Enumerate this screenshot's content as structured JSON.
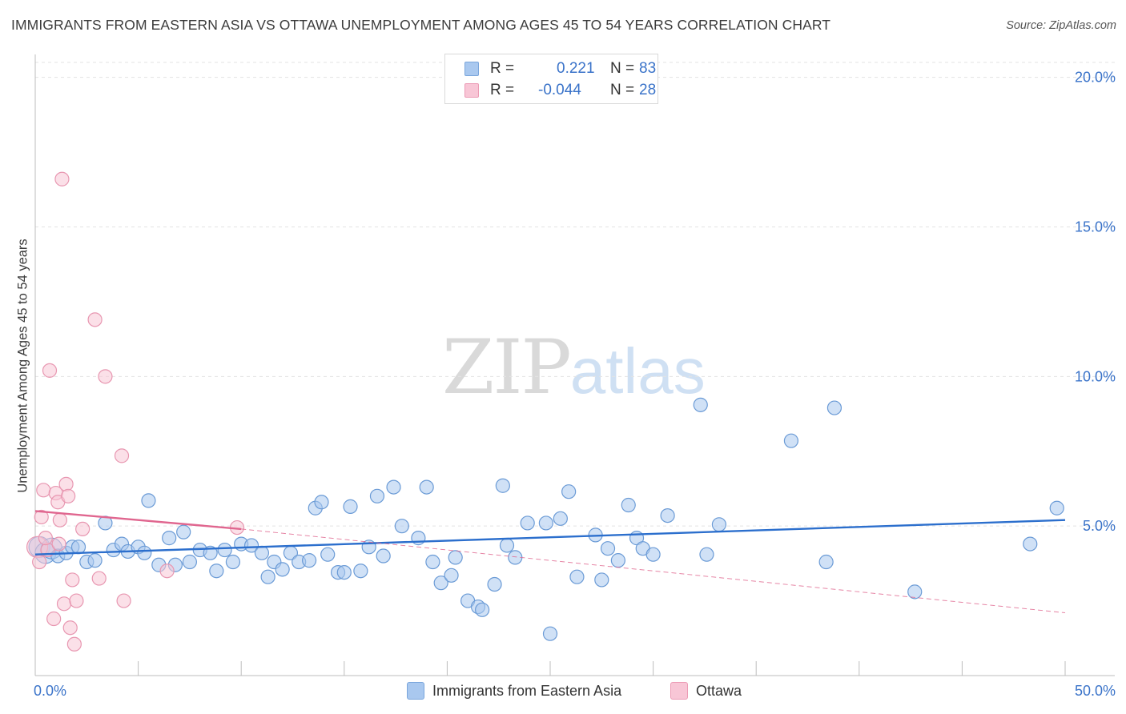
{
  "title": "IMMIGRANTS FROM EASTERN ASIA VS OTTAWA UNEMPLOYMENT AMONG AGES 45 TO 54 YEARS CORRELATION CHART",
  "source": "Source: ZipAtlas.com",
  "watermark": {
    "zip": "ZIP",
    "atlas": "atlas"
  },
  "legend_top": [
    {
      "r_label": "R =",
      "r_value": "0.221",
      "n_label": "N =",
      "n_value": "83",
      "color": "#a9c8ef",
      "border": "#7aa6dc"
    },
    {
      "r_label": "R =",
      "r_value": "-0.044",
      "n_label": "N =",
      "n_value": "28",
      "color": "#f8c6d6",
      "border": "#ec9bb5"
    }
  ],
  "legend_bottom": [
    {
      "label": "Immigrants from Eastern Asia",
      "color": "#a9c8ef",
      "border": "#7aa6dc"
    },
    {
      "label": "Ottawa",
      "color": "#f8c6d6",
      "border": "#ec9bb5"
    }
  ],
  "chart_data": {
    "type": "scatter",
    "title": "IMMIGRANTS FROM EASTERN ASIA VS OTTAWA UNEMPLOYMENT AMONG AGES 45 TO 54 YEARS CORRELATION CHART",
    "xlabel": "",
    "ylabel": "Unemployment Among Ages 45 to 54 years",
    "xlim": [
      0,
      50
    ],
    "ylim": [
      0,
      20.5
    ],
    "x_tick_labels": [
      "0.0%",
      "50.0%"
    ],
    "y_ticks": [
      5,
      10,
      15,
      20
    ],
    "y_tick_labels": [
      "5.0%",
      "10.0%",
      "15.0%",
      "20.0%"
    ],
    "grid": true,
    "series": [
      {
        "name": "Immigrants from Eastern Asia",
        "color": "#a9c8ef",
        "stroke": "#6b9bd6",
        "line_color": "#2c6fcd",
        "trend": {
          "x": [
            0,
            50
          ],
          "y": [
            4.05,
            5.2
          ]
        },
        "points": [
          {
            "x": 0.2,
            "y": 4.3,
            "big": true
          },
          {
            "x": 0.5,
            "y": 4.1,
            "big": true
          },
          {
            "x": 0.8,
            "y": 4.25,
            "big": true
          },
          {
            "x": 1.1,
            "y": 4.0
          },
          {
            "x": 1.5,
            "y": 4.1
          },
          {
            "x": 1.8,
            "y": 4.3
          },
          {
            "x": 2.1,
            "y": 4.3
          },
          {
            "x": 2.5,
            "y": 3.8
          },
          {
            "x": 2.9,
            "y": 3.85
          },
          {
            "x": 3.4,
            "y": 5.1
          },
          {
            "x": 3.8,
            "y": 4.2
          },
          {
            "x": 4.2,
            "y": 4.4
          },
          {
            "x": 4.5,
            "y": 4.15
          },
          {
            "x": 5.0,
            "y": 4.3
          },
          {
            "x": 5.3,
            "y": 4.1
          },
          {
            "x": 5.5,
            "y": 5.85
          },
          {
            "x": 6.0,
            "y": 3.7
          },
          {
            "x": 6.5,
            "y": 4.6
          },
          {
            "x": 6.8,
            "y": 3.7
          },
          {
            "x": 7.2,
            "y": 4.8
          },
          {
            "x": 7.5,
            "y": 3.8
          },
          {
            "x": 8.0,
            "y": 4.2
          },
          {
            "x": 8.5,
            "y": 4.1
          },
          {
            "x": 8.8,
            "y": 3.5
          },
          {
            "x": 9.2,
            "y": 4.2
          },
          {
            "x": 9.6,
            "y": 3.8
          },
          {
            "x": 10.0,
            "y": 4.4
          },
          {
            "x": 10.5,
            "y": 4.35
          },
          {
            "x": 11.0,
            "y": 4.1
          },
          {
            "x": 11.3,
            "y": 3.3
          },
          {
            "x": 11.6,
            "y": 3.8
          },
          {
            "x": 12.0,
            "y": 3.55
          },
          {
            "x": 12.4,
            "y": 4.1
          },
          {
            "x": 12.8,
            "y": 3.8
          },
          {
            "x": 13.3,
            "y": 3.85
          },
          {
            "x": 13.6,
            "y": 5.6
          },
          {
            "x": 13.9,
            "y": 5.8
          },
          {
            "x": 14.2,
            "y": 4.05
          },
          {
            "x": 14.7,
            "y": 3.45
          },
          {
            "x": 15.0,
            "y": 3.45
          },
          {
            "x": 15.3,
            "y": 5.65
          },
          {
            "x": 15.8,
            "y": 3.5
          },
          {
            "x": 16.2,
            "y": 4.3
          },
          {
            "x": 16.6,
            "y": 6.0
          },
          {
            "x": 16.9,
            "y": 4.0
          },
          {
            "x": 17.4,
            "y": 6.3
          },
          {
            "x": 17.8,
            "y": 5.0
          },
          {
            "x": 18.6,
            "y": 4.6
          },
          {
            "x": 19.0,
            "y": 6.3
          },
          {
            "x": 19.3,
            "y": 3.8
          },
          {
            "x": 19.7,
            "y": 3.1
          },
          {
            "x": 20.2,
            "y": 3.35
          },
          {
            "x": 20.4,
            "y": 3.95
          },
          {
            "x": 21.0,
            "y": 2.5
          },
          {
            "x": 21.5,
            "y": 2.3
          },
          {
            "x": 21.7,
            "y": 2.2
          },
          {
            "x": 22.3,
            "y": 3.05
          },
          {
            "x": 22.7,
            "y": 6.35
          },
          {
            "x": 22.9,
            "y": 4.35
          },
          {
            "x": 23.3,
            "y": 3.95
          },
          {
            "x": 23.9,
            "y": 5.1
          },
          {
            "x": 24.8,
            "y": 5.1
          },
          {
            "x": 25.0,
            "y": 1.4
          },
          {
            "x": 25.5,
            "y": 5.25
          },
          {
            "x": 25.9,
            "y": 6.15
          },
          {
            "x": 26.3,
            "y": 3.3
          },
          {
            "x": 27.2,
            "y": 4.7
          },
          {
            "x": 27.5,
            "y": 3.2
          },
          {
            "x": 27.8,
            "y": 4.25
          },
          {
            "x": 28.3,
            "y": 3.85
          },
          {
            "x": 28.8,
            "y": 5.7
          },
          {
            "x": 29.2,
            "y": 4.6
          },
          {
            "x": 29.5,
            "y": 4.25
          },
          {
            "x": 30.0,
            "y": 4.05
          },
          {
            "x": 30.7,
            "y": 5.35
          },
          {
            "x": 32.3,
            "y": 9.05
          },
          {
            "x": 32.6,
            "y": 4.05
          },
          {
            "x": 33.2,
            "y": 5.05
          },
          {
            "x": 36.7,
            "y": 7.85
          },
          {
            "x": 38.4,
            "y": 3.8
          },
          {
            "x": 38.8,
            "y": 8.95
          },
          {
            "x": 42.7,
            "y": 2.8
          },
          {
            "x": 48.3,
            "y": 4.4
          },
          {
            "x": 49.6,
            "y": 5.6
          }
        ]
      },
      {
        "name": "Ottawa",
        "color": "#f8c6d6",
        "stroke": "#e897b1",
        "line_color": "#e0668f",
        "trend": {
          "x": [
            0,
            10
          ],
          "y": [
            5.5,
            4.9
          ]
        },
        "trend_dashed": {
          "x": [
            10,
            50
          ],
          "y": [
            4.9,
            2.1
          ]
        },
        "points": [
          {
            "x": 0.1,
            "y": 4.3,
            "big": true
          },
          {
            "x": 0.2,
            "y": 3.8
          },
          {
            "x": 0.3,
            "y": 5.3
          },
          {
            "x": 0.4,
            "y": 6.2
          },
          {
            "x": 0.6,
            "y": 4.2
          },
          {
            "x": 0.7,
            "y": 10.2
          },
          {
            "x": 0.9,
            "y": 1.9
          },
          {
            "x": 1.0,
            "y": 6.1
          },
          {
            "x": 1.1,
            "y": 5.8
          },
          {
            "x": 1.2,
            "y": 5.2
          },
          {
            "x": 1.3,
            "y": 16.6
          },
          {
            "x": 1.4,
            "y": 2.4
          },
          {
            "x": 1.5,
            "y": 6.4
          },
          {
            "x": 1.6,
            "y": 6.0
          },
          {
            "x": 1.7,
            "y": 1.6
          },
          {
            "x": 1.8,
            "y": 3.2
          },
          {
            "x": 1.9,
            "y": 1.05
          },
          {
            "x": 2.0,
            "y": 2.5
          },
          {
            "x": 2.3,
            "y": 4.9
          },
          {
            "x": 2.9,
            "y": 11.9
          },
          {
            "x": 3.1,
            "y": 3.25
          },
          {
            "x": 3.4,
            "y": 10.0
          },
          {
            "x": 4.3,
            "y": 2.5
          },
          {
            "x": 4.2,
            "y": 7.35
          },
          {
            "x": 6.4,
            "y": 3.5
          },
          {
            "x": 9.8,
            "y": 4.95
          },
          {
            "x": 0.5,
            "y": 4.6
          },
          {
            "x": 1.15,
            "y": 4.4
          }
        ]
      }
    ]
  }
}
